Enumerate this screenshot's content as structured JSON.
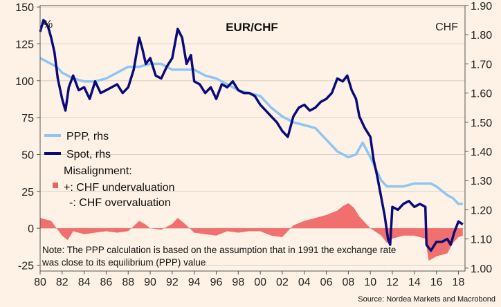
{
  "chart_data": {
    "type": "line",
    "title": "EUR/CHF",
    "left_unit": "%",
    "right_unit": "CHF",
    "x_ticks": [
      "80",
      "82",
      "84",
      "86",
      "88",
      "90",
      "92",
      "94",
      "96",
      "98",
      "00",
      "02",
      "04",
      "06",
      "08",
      "10",
      "12",
      "14",
      "16",
      "18"
    ],
    "x_range": [
      1980,
      2018.6
    ],
    "left_axis": {
      "ticks": [
        150,
        125,
        100,
        75,
        50,
        25,
        0,
        -25
      ],
      "ylim": [
        -29,
        151
      ]
    },
    "right_axis": {
      "ticks": [
        "1.90",
        "1.80",
        "1.70",
        "1.60",
        "1.50",
        "1.40",
        "1.30",
        "1.20",
        "1.10",
        "1.00"
      ],
      "ylim": [
        0.99,
        1.9
      ]
    },
    "legend": [
      {
        "label": "PPP, rhs",
        "color": "#8ec5f2"
      },
      {
        "label": "Spot, rhs",
        "color": "#0a0a7a"
      },
      {
        "label": "Misalignment:"
      },
      {
        "label": "+: CHF undervaluation",
        "color": "#f06060"
      },
      {
        "label": "-: CHF overvaluation"
      }
    ],
    "note_line1": "Note: The PPP calculation is based on the assumption that in 1991 the exchange rate",
    "note_line2": "was close to its equilibrium (PPP) value",
    "source": "Source: Nordea Markets and Macrobond",
    "series": [
      {
        "name": "PPP, rhs",
        "axis": "right",
        "color": "#8ec5f2",
        "x": [
          1980,
          1980.5,
          1981,
          1981.5,
          1982,
          1983,
          1984,
          1985,
          1986,
          1987,
          1988,
          1989,
          1990,
          1991,
          1992,
          1993,
          1994,
          1995,
          1996,
          1997,
          1998,
          1999,
          2000,
          2001,
          2002,
          2003,
          2004,
          2005,
          2006,
          2007,
          2008,
          2008.7,
          2009.3,
          2010,
          2010.5,
          2011,
          2011.5,
          2012,
          2013,
          2014,
          2015,
          2015.5,
          2016,
          2017,
          2017.5,
          2018,
          2018.4
        ],
        "y": [
          1.72,
          1.71,
          1.7,
          1.69,
          1.67,
          1.65,
          1.64,
          1.64,
          1.65,
          1.67,
          1.69,
          1.69,
          1.7,
          1.7,
          1.68,
          1.68,
          1.68,
          1.66,
          1.65,
          1.63,
          1.61,
          1.6,
          1.59,
          1.55,
          1.52,
          1.5,
          1.49,
          1.48,
          1.44,
          1.4,
          1.38,
          1.39,
          1.43,
          1.38,
          1.34,
          1.3,
          1.28,
          1.28,
          1.28,
          1.29,
          1.29,
          1.29,
          1.28,
          1.25,
          1.24,
          1.22,
          1.22
        ]
      },
      {
        "name": "Spot, rhs",
        "axis": "right",
        "color": "#0a0a7a",
        "x": [
          1980,
          1980.3,
          1980.7,
          1981,
          1981.3,
          1981.6,
          1982,
          1982.3,
          1982.6,
          1983,
          1983.5,
          1984,
          1984.5,
          1985,
          1985.5,
          1986,
          1986.5,
          1987,
          1987.5,
          1988,
          1988.5,
          1989,
          1989.3,
          1989.6,
          1990,
          1990.5,
          1991,
          1991.5,
          1992,
          1992.5,
          1992.9,
          1993.3,
          1993.7,
          1994,
          1994.5,
          1995,
          1995.5,
          1996,
          1996.5,
          1997,
          1997.5,
          1998,
          1998.5,
          1999,
          1999.5,
          2000,
          2000.5,
          2001,
          2001.5,
          2002,
          2002.5,
          2003,
          2003.5,
          2004,
          2004.5,
          2005,
          2005.5,
          2006,
          2006.5,
          2007,
          2007.5,
          2007.9,
          2008.3,
          2008.7,
          2009,
          2009.5,
          2010,
          2010.3,
          2010.6,
          2011,
          2011.3,
          2011.6,
          2011.8,
          2012,
          2012.5,
          2013,
          2013.5,
          2014,
          2014.5,
          2015,
          2015.1,
          2015.5,
          2016,
          2016.5,
          2017,
          2017.3,
          2017.6,
          2018,
          2018.4
        ],
        "y": [
          1.81,
          1.85,
          1.83,
          1.79,
          1.74,
          1.65,
          1.58,
          1.54,
          1.62,
          1.66,
          1.61,
          1.62,
          1.58,
          1.64,
          1.6,
          1.61,
          1.62,
          1.63,
          1.6,
          1.62,
          1.68,
          1.79,
          1.75,
          1.7,
          1.72,
          1.66,
          1.65,
          1.69,
          1.72,
          1.82,
          1.79,
          1.7,
          1.73,
          1.64,
          1.63,
          1.6,
          1.62,
          1.58,
          1.63,
          1.62,
          1.64,
          1.61,
          1.6,
          1.6,
          1.59,
          1.56,
          1.54,
          1.52,
          1.5,
          1.47,
          1.45,
          1.52,
          1.55,
          1.56,
          1.54,
          1.55,
          1.57,
          1.58,
          1.6,
          1.65,
          1.64,
          1.66,
          1.61,
          1.58,
          1.52,
          1.48,
          1.45,
          1.37,
          1.32,
          1.24,
          1.18,
          1.1,
          1.08,
          1.21,
          1.2,
          1.22,
          1.23,
          1.21,
          1.22,
          1.21,
          1.08,
          1.06,
          1.09,
          1.09,
          1.1,
          1.08,
          1.12,
          1.16,
          1.15
        ]
      },
      {
        "name": "Misalignment",
        "axis": "left",
        "type": "area",
        "color": "#f06060",
        "x": [
          1980,
          1981,
          1982,
          1982.5,
          1983,
          1984,
          1985,
          1986,
          1987,
          1988,
          1989,
          1989.5,
          1990,
          1991,
          1992,
          1992.5,
          1993,
          1994,
          1995,
          1996,
          1997,
          1998,
          1999,
          2000,
          2001,
          2002,
          2003,
          2004,
          2005,
          2006,
          2007,
          2007.5,
          2008,
          2008.5,
          2009,
          2010,
          2011,
          2011.5,
          2012,
          2013,
          2014,
          2015,
          2015.3,
          2016,
          2017,
          2017.5,
          2018,
          2018.4
        ],
        "y": [
          7,
          5,
          -5,
          -8,
          -2,
          -4,
          -3,
          -2,
          -3,
          -2,
          5,
          3,
          0,
          -1,
          3,
          7,
          4,
          -3,
          -4,
          -5,
          -2,
          -3,
          -2,
          -2,
          -5,
          -6,
          2,
          5,
          7,
          9,
          12,
          15,
          17,
          14,
          8,
          0,
          -5,
          -10,
          -7,
          -5,
          -5,
          -7,
          -22,
          -19,
          -17,
          -10,
          -6,
          -5
        ]
      }
    ]
  }
}
